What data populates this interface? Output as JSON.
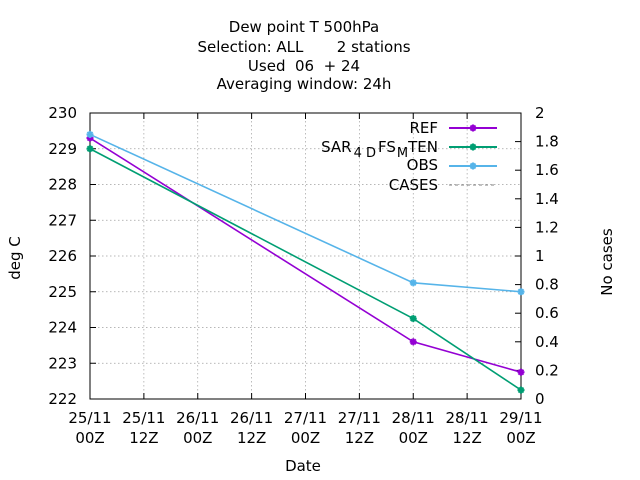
{
  "chart_data": {
    "type": "line",
    "title_lines": [
      "Dew point T 500hPa",
      "Selection: ALL       2 stations",
      "Used  06  + 24",
      "Averaging window: 24h"
    ],
    "xlabel": "Date",
    "ylabel": "deg C",
    "y2label": "No cases",
    "x_ticks": [
      {
        "l1": "25/11",
        "l2": "00Z"
      },
      {
        "l1": "25/11",
        "l2": "12Z"
      },
      {
        "l1": "26/11",
        "l2": "00Z"
      },
      {
        "l1": "26/11",
        "l2": "12Z"
      },
      {
        "l1": "27/11",
        "l2": "00Z"
      },
      {
        "l1": "27/11",
        "l2": "12Z"
      },
      {
        "l1": "28/11",
        "l2": "00Z"
      },
      {
        "l1": "28/11",
        "l2": "12Z"
      },
      {
        "l1": "29/11",
        "l2": "00Z"
      }
    ],
    "y_ticks": [
      "222",
      "223",
      "224",
      "225",
      "226",
      "227",
      "228",
      "229",
      "230"
    ],
    "y2_ticks": [
      "0",
      "0.2",
      "0.4",
      "0.6",
      "0.8",
      "1",
      "1.2",
      "1.4",
      "1.6",
      "1.8",
      "2"
    ],
    "ylim": [
      222,
      230
    ],
    "y2lim": [
      0,
      2
    ],
    "grid": true,
    "legend_position": "top-right",
    "series": [
      {
        "name": "REF",
        "color": "#9400d3",
        "x": [
          "25/11 00Z",
          "28/11 00Z",
          "29/11 00Z"
        ],
        "values": [
          229.3,
          223.6,
          222.75
        ]
      },
      {
        "name": "SAR",
        "name_sub1": "4 D",
        "name_mid": "FS",
        "name_sub2": "M",
        "name_tail": "TEN",
        "color": "#009e73",
        "x": [
          "25/11 00Z",
          "28/11 00Z",
          "29/11 00Z"
        ],
        "values": [
          229.0,
          224.25,
          222.25
        ]
      },
      {
        "name": "OBS",
        "color": "#56b4e9",
        "x": [
          "25/11 00Z",
          "28/11 00Z",
          "29/11 00Z"
        ],
        "values": [
          229.4,
          225.25,
          225.0
        ]
      },
      {
        "name": "CASES",
        "color": "#808080",
        "dashed": true,
        "x": [
          "25/11 00Z",
          "28/11 00Z",
          "29/11 00Z"
        ],
        "values": [
          2,
          2,
          2
        ],
        "axis": "y2"
      }
    ]
  }
}
